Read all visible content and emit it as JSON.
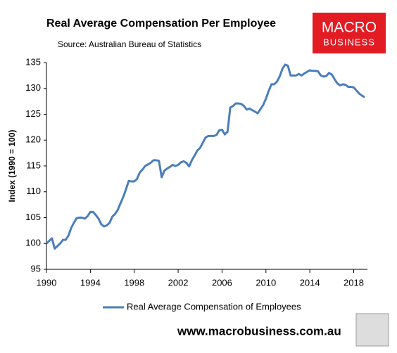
{
  "chart_data": {
    "type": "line",
    "title": "Real Average Compensation Per Employee",
    "source": "Source: Australian Bureau of Statistics",
    "logo": [
      "MACRO",
      "BUSINESS"
    ],
    "footer": "www.macrobusiness.com.au",
    "y_label": "Index (1990 = 100)",
    "x": [
      1990,
      1990.25,
      1990.5,
      1990.75,
      1991,
      1991.25,
      1991.5,
      1991.75,
      1992,
      1992.25,
      1992.5,
      1992.75,
      1993,
      1993.25,
      1993.5,
      1993.75,
      1994,
      1994.25,
      1994.5,
      1994.75,
      1995,
      1995.25,
      1995.5,
      1995.75,
      1996,
      1996.25,
      1996.5,
      1996.75,
      1997,
      1997.25,
      1997.5,
      1997.75,
      1998,
      1998.25,
      1998.5,
      1998.75,
      1999,
      1999.25,
      1999.5,
      1999.75,
      2000,
      2000.25,
      2000.5,
      2000.75,
      2001,
      2001.25,
      2001.5,
      2001.75,
      2002,
      2002.25,
      2002.5,
      2002.75,
      2003,
      2003.25,
      2003.5,
      2003.75,
      2004,
      2004.25,
      2004.5,
      2004.75,
      2005,
      2005.25,
      2005.5,
      2005.75,
      2006,
      2006.25,
      2006.5,
      2006.75,
      2007,
      2007.25,
      2007.5,
      2007.75,
      2008,
      2008.25,
      2008.5,
      2008.75,
      2009,
      2009.25,
      2009.5,
      2009.75,
      2010,
      2010.25,
      2010.5,
      2010.75,
      2011,
      2011.25,
      2011.5,
      2011.75,
      2012,
      2012.25,
      2012.5,
      2012.75,
      2013,
      2013.25,
      2013.5,
      2013.75,
      2014,
      2014.25,
      2014.5,
      2014.75,
      2015,
      2015.25,
      2015.5,
      2015.75,
      2016,
      2016.25,
      2016.5,
      2016.75,
      2017,
      2017.25,
      2017.5,
      2017.75,
      2018,
      2018.25,
      2018.5,
      2018.75,
      2019
    ],
    "series": [
      {
        "name": "Real Average Compensation of Employees",
        "color": "#4a7ebb",
        "values": [
          100.0,
          100.5,
          101.0,
          99.0,
          99.5,
          100.0,
          100.7,
          100.7,
          101.5,
          103.0,
          104.0,
          104.9,
          105.0,
          105.0,
          104.8,
          105.3,
          106.1,
          106.1,
          105.5,
          104.8,
          103.7,
          103.3,
          103.5,
          104.0,
          105.2,
          105.7,
          106.5,
          107.8,
          109.0,
          110.5,
          112.1,
          112.0,
          112.0,
          112.5,
          113.7,
          114.3,
          115.0,
          115.3,
          115.6,
          116.1,
          116.1,
          116.0,
          112.8,
          114.1,
          114.5,
          114.8,
          115.2,
          115.0,
          115.2,
          115.7,
          115.9,
          115.6,
          114.9,
          116.1,
          117.0,
          118.0,
          118.5,
          119.5,
          120.5,
          120.8,
          120.8,
          120.8,
          121.0,
          121.9,
          122.0,
          121.1,
          121.6,
          126.3,
          126.6,
          127.1,
          127.1,
          127.0,
          126.6,
          125.9,
          126.1,
          125.8,
          125.5,
          125.2,
          126.0,
          126.8,
          128.0,
          129.5,
          130.8,
          130.8,
          131.3,
          132.3,
          133.8,
          134.6,
          134.4,
          132.5,
          132.5,
          132.5,
          132.8,
          132.5,
          132.9,
          133.2,
          133.5,
          133.4,
          133.4,
          133.3,
          132.5,
          132.3,
          132.4,
          133.0,
          132.7,
          131.8,
          131.0,
          130.6,
          130.8,
          130.7,
          130.3,
          130.3,
          130.2,
          129.6,
          129.0,
          128.6,
          128.3
        ]
      }
    ],
    "xlim": [
      1990,
      2019.25
    ],
    "xticks": [
      1990,
      1994,
      1998,
      2002,
      2006,
      2010,
      2014,
      2018
    ],
    "ylim": [
      95,
      135
    ],
    "yticks": [
      95,
      100,
      105,
      110,
      115,
      120,
      125,
      130,
      135
    ],
    "grid": false,
    "legend": "bottom"
  }
}
